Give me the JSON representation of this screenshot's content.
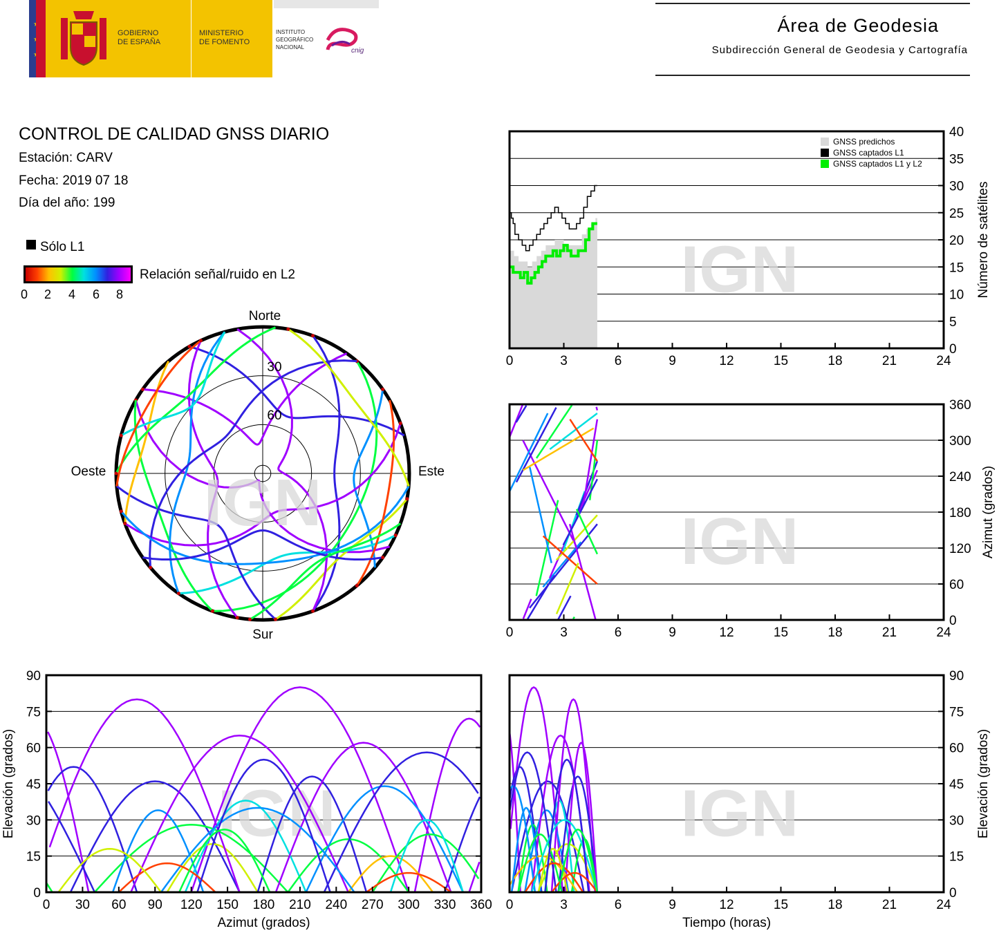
{
  "header": {
    "gov_line1": "GOBIERNO",
    "gov_line2": "DE ESPAÑA",
    "min_line1": "MINISTERIO",
    "min_line2": "DE FOMENTO",
    "ign_line1": "INSTITUTO",
    "ign_line2": "GEOGRÁFICO",
    "ign_line3": "NACIONAL",
    "cnig": "cnig",
    "area_title": "Área de Geodesia",
    "area_subtitle": "Subdirección General de Geodesia y Cartografía",
    "brand_yellow": "#f3c300",
    "brand_red": "#c8102e"
  },
  "info": {
    "title": "CONTROL DE CALIDAD GNSS DIARIO",
    "station": "Estación: CARV",
    "date": "Fecha: 2019 07 18",
    "doy": "Día del año: 199",
    "legend_l1": "Sólo L1",
    "colorbar_label": "Relación señal/ruido en L2",
    "colorbar_ticks": [
      "0",
      "2",
      "4",
      "6",
      "8"
    ],
    "colorbar_colors": [
      "#c80000",
      "#ff4000",
      "#ffc000",
      "#d0f000",
      "#00ff40",
      "#00e0e0",
      "#0090ff",
      "#3020e0",
      "#a000ff",
      "#ff00ff"
    ]
  },
  "watermark": "IGN",
  "chart_data": [
    {
      "id": "skyplot",
      "type": "scatter",
      "title": "",
      "labels": {
        "north": "Norte",
        "south": "Sur",
        "east": "Este",
        "west": "Oeste"
      },
      "ring_labels": [
        "30",
        "60"
      ],
      "elevation_rings": [
        0,
        30,
        60,
        85
      ]
    },
    {
      "id": "satellites",
      "type": "area",
      "xlim": [
        0,
        24
      ],
      "ylim": [
        0,
        40
      ],
      "xticks": [
        "0",
        "3",
        "6",
        "9",
        "12",
        "15",
        "18",
        "21",
        "24"
      ],
      "yticks": [
        "0",
        "5",
        "10",
        "15",
        "20",
        "25",
        "30",
        "35",
        "40"
      ],
      "ylabel": "Número de satélites",
      "grid": true,
      "legend_position": "top-right",
      "series": [
        {
          "name": "GNSS predichos",
          "color": "#d9d9d9",
          "x": [
            0,
            0.25,
            0.5,
            0.75,
            1,
            1.25,
            1.5,
            1.75,
            2,
            2.25,
            2.5,
            2.75,
            3,
            3.25,
            3.5,
            3.75,
            4,
            4.25,
            4.5,
            4.75,
            4.85
          ],
          "y": [
            18,
            17,
            16,
            16,
            15,
            16,
            17,
            18,
            19,
            19,
            20,
            20,
            19,
            19,
            19,
            19,
            21,
            22,
            23,
            24,
            24
          ]
        },
        {
          "name": "GNSS captados L1",
          "color": "#000000",
          "x": [
            0,
            0.1,
            0.2,
            0.3,
            0.5,
            0.7,
            0.9,
            1.1,
            1.3,
            1.5,
            1.7,
            1.9,
            2.1,
            2.3,
            2.5,
            2.7,
            2.9,
            3.1,
            3.3,
            3.5,
            3.7,
            3.9,
            4.1,
            4.3,
            4.5,
            4.7,
            4.85
          ],
          "y": [
            25,
            24,
            23,
            21,
            20,
            19,
            18,
            19,
            20,
            21,
            22,
            23,
            24,
            25,
            26,
            25,
            24,
            23,
            22,
            22,
            23,
            24,
            26,
            28,
            29,
            30,
            30
          ]
        },
        {
          "name": "GNSS captados L1 y L2",
          "color": "#00ee00",
          "x": [
            0,
            0.2,
            0.4,
            0.6,
            0.8,
            1.0,
            1.2,
            1.4,
            1.6,
            1.8,
            2.0,
            2.2,
            2.4,
            2.6,
            2.8,
            3.0,
            3.2,
            3.4,
            3.6,
            3.8,
            4.0,
            4.2,
            4.4,
            4.6,
            4.85
          ],
          "y": [
            15,
            14,
            14,
            13,
            14,
            12,
            13,
            14,
            15,
            16,
            17,
            17,
            18,
            17,
            18,
            19,
            18,
            17,
            17,
            18,
            18,
            20,
            22,
            23,
            23
          ]
        }
      ]
    },
    {
      "id": "azimuth_time",
      "type": "scatter",
      "xlim": [
        0,
        24
      ],
      "ylim": [
        0,
        360
      ],
      "xticks": [
        "0",
        "3",
        "6",
        "9",
        "12",
        "15",
        "18",
        "21",
        "24"
      ],
      "yticks": [
        "0",
        "60",
        "120",
        "180",
        "240",
        "300",
        "360"
      ],
      "ylabel": "Azimut (grados)",
      "grid": true
    },
    {
      "id": "elevation_azimuth",
      "type": "scatter",
      "xlim": [
        0,
        360
      ],
      "ylim": [
        0,
        90
      ],
      "xticks": [
        "0",
        "30",
        "60",
        "90",
        "120",
        "150",
        "180",
        "210",
        "240",
        "270",
        "300",
        "330",
        "360"
      ],
      "yticks": [
        "0",
        "15",
        "30",
        "45",
        "60",
        "75",
        "90"
      ],
      "xlabel": "Azimut (grados)",
      "ylabel": "Elevación (grados)",
      "grid": true
    },
    {
      "id": "elevation_time",
      "type": "scatter",
      "xlim": [
        0,
        24
      ],
      "ylim": [
        0,
        90
      ],
      "xticks": [
        "0",
        "3",
        "6",
        "9",
        "12",
        "15",
        "18",
        "21",
        "24"
      ],
      "yticks": [
        "0",
        "15",
        "30",
        "45",
        "60",
        "75",
        "90"
      ],
      "xlabel": "Tiempo (horas)",
      "ylabel": "Elevación (grados)",
      "grid": true
    }
  ],
  "tracks": [
    {
      "az0": 305,
      "az1": 35,
      "peak": 72,
      "snr": 8.5
    },
    {
      "az0": 330,
      "az1": 75,
      "peak": 52,
      "snr": 7.2
    },
    {
      "az0": 300,
      "az1": 120,
      "peak": 85,
      "snr": 8.8
    },
    {
      "az0": 20,
      "az1": 160,
      "peak": 46,
      "snr": 7.0
    },
    {
      "az0": 40,
      "az1": 200,
      "peak": 28,
      "snr": 4.5
    },
    {
      "az0": 55,
      "az1": 130,
      "peak": 34,
      "snr": 6.4
    },
    {
      "az0": 70,
      "az1": 250,
      "peak": 65,
      "snr": 8.0
    },
    {
      "az0": 100,
      "az1": 175,
      "peak": 20,
      "snr": 3.2
    },
    {
      "az0": 115,
      "az1": 215,
      "peak": 38,
      "snr": 5.5
    },
    {
      "az0": 160,
      "az1": 350,
      "peak": 80,
      "snr": 8.6
    },
    {
      "az0": 175,
      "az1": 265,
      "peak": 48,
      "snr": 7.4
    },
    {
      "az0": 190,
      "az1": 335,
      "peak": 62,
      "snr": 8.1
    },
    {
      "az0": 200,
      "az1": 300,
      "peak": 22,
      "snr": 4.0
    },
    {
      "az0": 215,
      "az1": 345,
      "peak": 44,
      "snr": 6.9
    },
    {
      "az0": 230,
      "az1": 40,
      "peak": 58,
      "snr": 7.8
    },
    {
      "az0": 250,
      "az1": 320,
      "peak": 15,
      "snr": 2.6
    },
    {
      "az0": 255,
      "az1": 95,
      "peak": 35,
      "snr": 6.0
    },
    {
      "az0": 270,
      "az1": 5,
      "peak": 24,
      "snr": 4.2
    },
    {
      "az0": 140,
      "az1": 60,
      "peak": 12,
      "snr": 1.8
    },
    {
      "az0": 285,
      "az1": 345,
      "peak": 30,
      "snr": 5.2
    },
    {
      "az0": 10,
      "az1": 95,
      "peak": 18,
      "snr": 3.0
    },
    {
      "az0": 125,
      "az1": 235,
      "peak": 55,
      "snr": 7.6
    },
    {
      "az0": 335,
      "az1": 265,
      "peak": 8,
      "snr": 1.0
    },
    {
      "az0": 185,
      "az1": 110,
      "peak": 26,
      "snr": 4.8
    }
  ]
}
